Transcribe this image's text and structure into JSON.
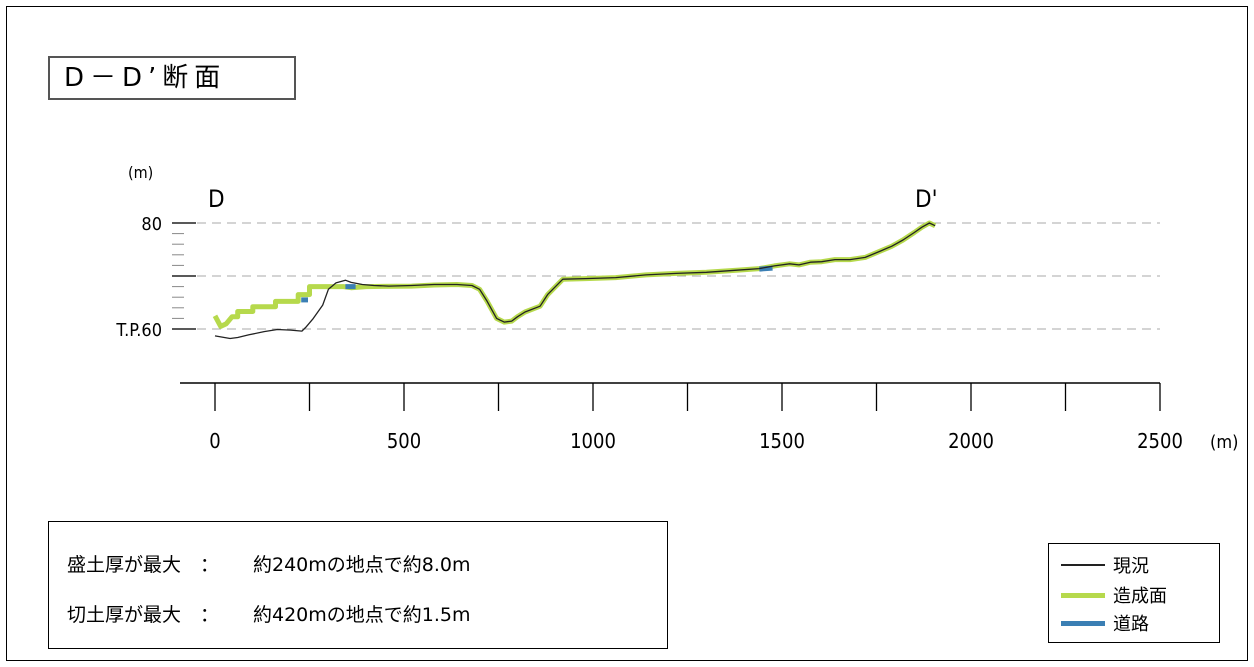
{
  "title": "D－D’断面",
  "colors": {
    "ground": "#222222",
    "grading": "#b6d94c",
    "road": "#3b7fb4",
    "grid": "#aaaaaa"
  },
  "chart_data": {
    "type": "line",
    "y_unit": "(m)",
    "x_unit": "(m)",
    "xlim": [
      0,
      2500
    ],
    "ylim": [
      50,
      80
    ],
    "x_ticks": [
      0,
      500,
      1000,
      1500,
      2000,
      2500
    ],
    "x_tick_labels": [
      "0",
      "500",
      "1000",
      "1500",
      "2000",
      "2500"
    ],
    "y_tick_labels": [
      {
        "value": 80,
        "label": "80"
      },
      {
        "value": 60,
        "label": "T.P.60"
      }
    ],
    "gridlines_y": [
      60,
      70,
      80
    ],
    "start_label": "D",
    "end_label": "D'",
    "series": [
      {
        "name": "現況",
        "color_key": "ground",
        "x": [
          0,
          40,
          60,
          90,
          130,
          165,
          200,
          230,
          240,
          260,
          285,
          300,
          320,
          345,
          360,
          390,
          420,
          460,
          520,
          580,
          640,
          680,
          700,
          720,
          745,
          765,
          785,
          800,
          820,
          860,
          880,
          920,
          980,
          1060,
          1140,
          1220,
          1300,
          1380,
          1440,
          1480,
          1520,
          1545,
          1575,
          1605,
          1640,
          1680,
          1720,
          1760,
          1790,
          1820,
          1850,
          1870,
          1890,
          1905
        ],
        "y": [
          58.7,
          58.2,
          58.4,
          58.9,
          59.5,
          59.9,
          59.8,
          59.6,
          60.3,
          62.0,
          64.5,
          67.5,
          68.7,
          69.2,
          68.8,
          68.4,
          68.2,
          68.1,
          68.2,
          68.4,
          68.4,
          68.2,
          67.5,
          65.2,
          62.0,
          61.3,
          61.5,
          62.3,
          63.2,
          64.3,
          66.5,
          69.4,
          69.5,
          69.7,
          70.2,
          70.5,
          70.7,
          71.1,
          71.4,
          71.9,
          72.3,
          72.1,
          72.6,
          72.7,
          73.1,
          73.1,
          73.5,
          74.7,
          75.6,
          76.8,
          78.2,
          79.2,
          80.0,
          79.5
        ]
      },
      {
        "name": "造成面",
        "color_key": "grading",
        "x": [
          0,
          15,
          30,
          45,
          60,
          60,
          100,
          100,
          160,
          160,
          220,
          220,
          250,
          250,
          320,
          340,
          360,
          400,
          520,
          580,
          640,
          680,
          700,
          720,
          745,
          765,
          785,
          800,
          820,
          860,
          880,
          920,
          980,
          1060,
          1140,
          1220,
          1300,
          1380,
          1440,
          1480,
          1520,
          1545,
          1575,
          1605,
          1640,
          1680,
          1720,
          1760,
          1790,
          1820,
          1850,
          1870,
          1890,
          1905
        ],
        "y": [
          62.5,
          60.5,
          61.0,
          62.3,
          62.3,
          63.3,
          63.3,
          64.2,
          64.2,
          65.2,
          65.2,
          66.5,
          66.5,
          68.0,
          68.0,
          68.0,
          67.8,
          68.0,
          68.1,
          68.3,
          68.4,
          68.2,
          67.5,
          65.2,
          62.0,
          61.3,
          61.5,
          62.3,
          63.2,
          64.3,
          66.5,
          69.4,
          69.5,
          69.7,
          70.2,
          70.5,
          70.7,
          71.1,
          71.4,
          71.9,
          72.3,
          72.1,
          72.6,
          72.7,
          73.1,
          73.1,
          73.5,
          74.7,
          75.6,
          76.8,
          78.2,
          79.2,
          80.0,
          79.5
        ]
      },
      {
        "name": "道路",
        "color_key": "road",
        "segments": [
          {
            "x": [
              345,
              372
            ],
            "y": [
              68.0,
              68.0
            ]
          },
          {
            "x": [
              1440,
              1475
            ],
            "y": [
              71.3,
              71.5
            ]
          },
          {
            "x": [
              228,
              246
            ],
            "y": [
              65.5,
              65.5
            ]
          }
        ]
      }
    ]
  },
  "notes": [
    {
      "label": "盛土厚が最大　：",
      "value": "約240mの地点で約8.0m"
    },
    {
      "label": "切土厚が最大　：",
      "value": "約420mの地点で約1.5m"
    }
  ],
  "legend": [
    {
      "label": "現況",
      "color_key": "ground",
      "thickness": 2
    },
    {
      "label": "造成面",
      "color_key": "grading",
      "thickness": 5
    },
    {
      "label": "道路",
      "color_key": "road",
      "thickness": 5
    }
  ]
}
